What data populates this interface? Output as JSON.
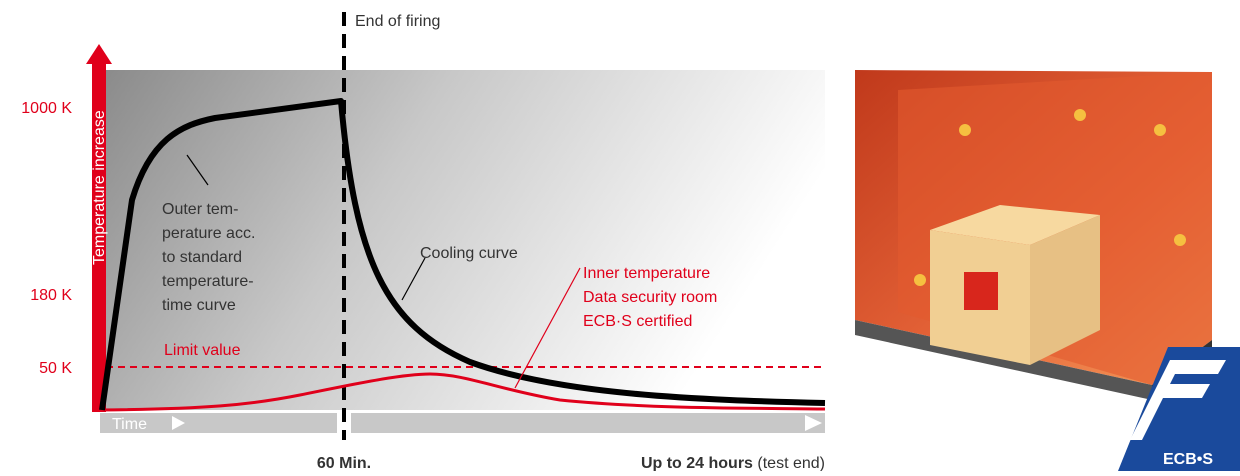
{
  "diagram": {
    "y_axis_label": "Temperature increase",
    "y_labels": [
      "1000 K",
      "180 K",
      "50 K"
    ],
    "limit_label": "Limit value",
    "end_label": "End of firing",
    "time_label": "Time",
    "outer_annotation": [
      "Outer tem-",
      "perature acc.",
      "to standard",
      "temperature-",
      "time curve"
    ],
    "cooling_annotation": "Cooling curve",
    "inner_annotation": [
      "Inner temperature",
      "Data security room",
      "ECB·S certified"
    ],
    "x_mid_label": "60 Min.",
    "x_end_label_bold": "Up to 24 hours",
    "x_end_label_rest": "(test end)",
    "logo": "ECB•S"
  }
}
